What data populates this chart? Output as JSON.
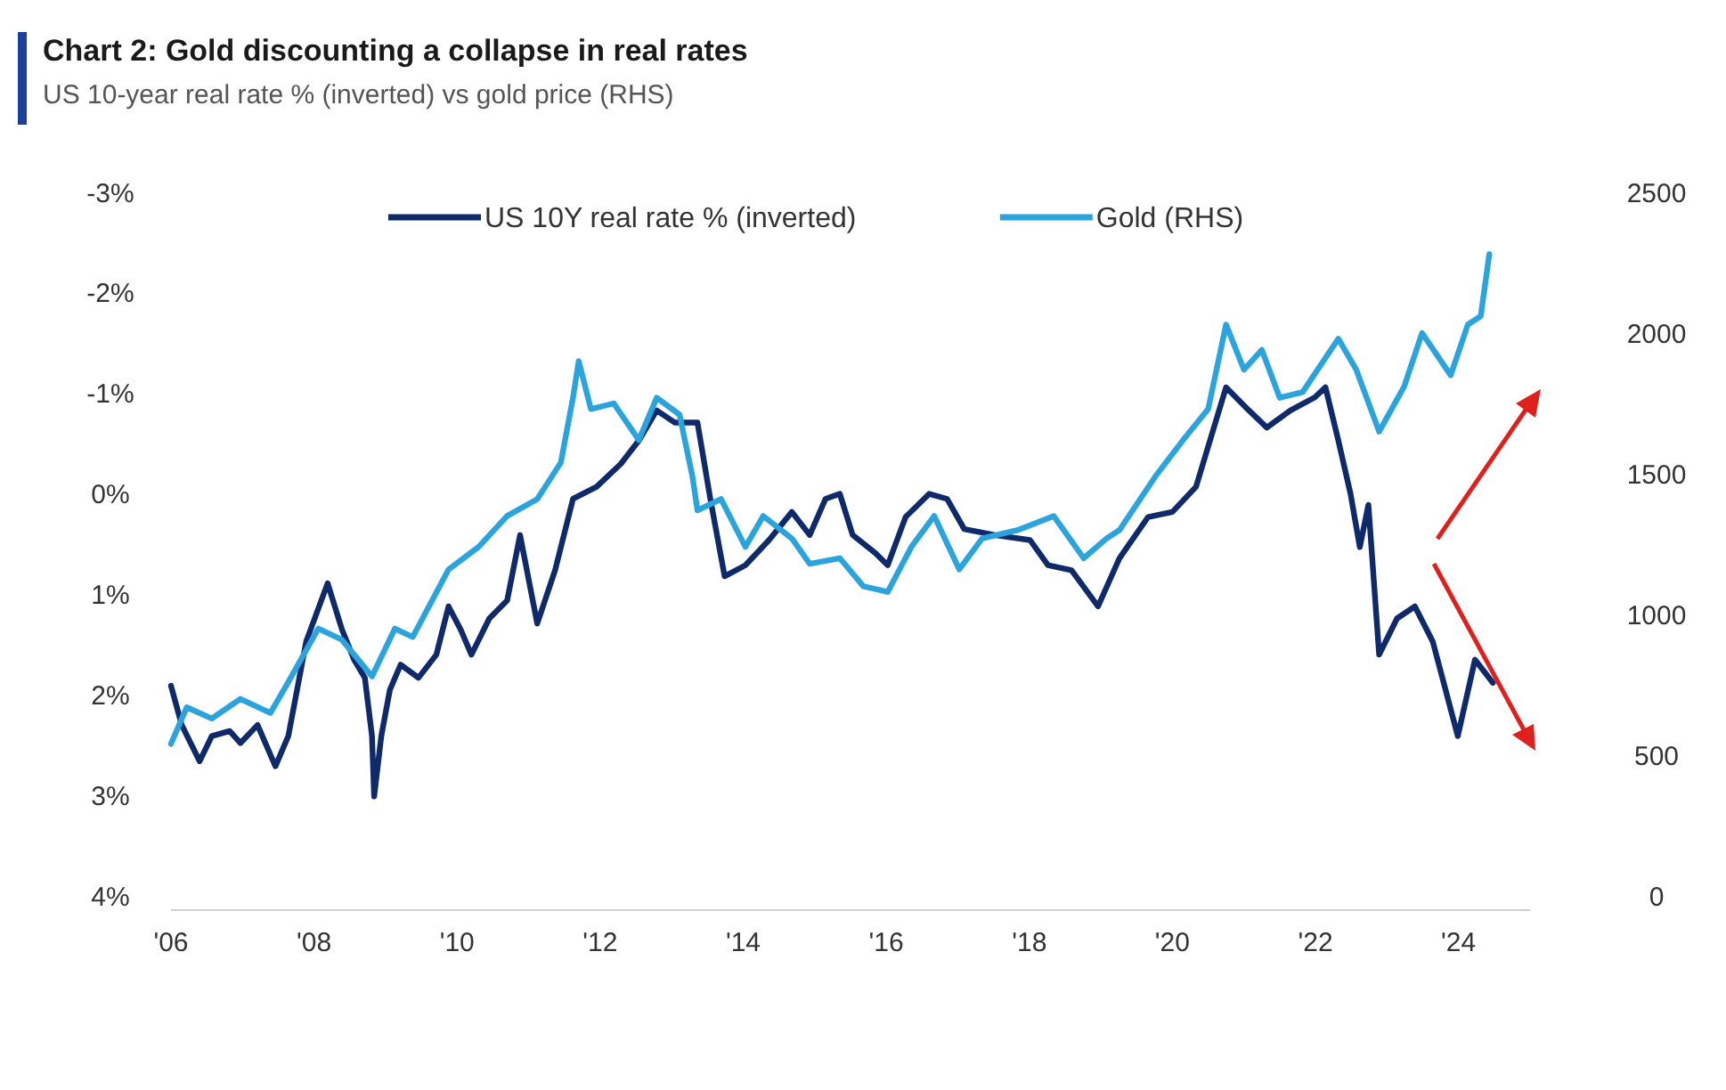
{
  "chart_data": {
    "type": "line",
    "title": "Chart 2: Gold discounting a collapse in real rates",
    "subtitle": "US 10-year real rate % (inverted) vs gold price (RHS)",
    "xlim": [
      2006,
      2025
    ],
    "xticks": [
      {
        "value": 2006,
        "label": "'06"
      },
      {
        "value": 2008,
        "label": "'08"
      },
      {
        "value": 2010,
        "label": "'10"
      },
      {
        "value": 2012,
        "label": "'12"
      },
      {
        "value": 2014,
        "label": "'14"
      },
      {
        "value": 2016,
        "label": "'16"
      },
      {
        "value": 2018,
        "label": "'18"
      },
      {
        "value": 2020,
        "label": "'20"
      },
      {
        "value": 2022,
        "label": "'22"
      },
      {
        "value": 2024,
        "label": "'24"
      }
    ],
    "ylim": [
      4,
      -3
    ],
    "yticks": [
      {
        "value": -3,
        "label": "-3%"
      },
      {
        "value": -2,
        "label": "-2%"
      },
      {
        "value": -1,
        "label": "-1%"
      },
      {
        "value": 0,
        "label": "0%"
      },
      {
        "value": 1,
        "label": "1%"
      },
      {
        "value": 2,
        "label": "2%"
      },
      {
        "value": 3,
        "label": "3%"
      },
      {
        "value": 4,
        "label": "4%"
      }
    ],
    "y2lim": [
      0,
      2500
    ],
    "y2ticks": [
      0,
      500,
      1000,
      1500,
      2000,
      2500
    ],
    "legend": "top",
    "grid": false,
    "marker": "none",
    "line_style": "solid",
    "series": [
      {
        "name": "US 10Y real rate % (inverted)",
        "color": "#0e2a6b",
        "x": [
          2006.0,
          2006.15,
          2006.4,
          2006.57,
          2006.82,
          2006.97,
          2007.21,
          2007.46,
          2007.64,
          2007.89,
          2008.19,
          2008.39,
          2008.56,
          2008.71,
          2008.81,
          2008.84,
          2008.94,
          2009.06,
          2009.21,
          2009.46,
          2009.71,
          2009.88,
          2010.05,
          2010.2,
          2010.45,
          2010.7,
          2010.88,
          2011.12,
          2011.37,
          2011.62,
          2011.95,
          2012.29,
          2012.54,
          2012.79,
          2013.04,
          2013.36,
          2013.54,
          2013.74,
          2014.03,
          2014.36,
          2014.68,
          2014.93,
          2015.15,
          2015.35,
          2015.53,
          2015.85,
          2016.02,
          2016.27,
          2016.6,
          2016.85,
          2017.09,
          2017.52,
          2018.01,
          2018.26,
          2018.59,
          2018.96,
          2019.26,
          2019.66,
          2020.0,
          2020.33,
          2020.58,
          2020.75,
          2021.07,
          2021.32,
          2021.65,
          2021.99,
          2022.14,
          2022.32,
          2022.49,
          2022.62,
          2022.74,
          2022.89,
          2023.14,
          2023.39,
          2023.64,
          2023.99,
          2024.23,
          2024.48
        ],
        "values": [
          1.91,
          2.3,
          2.66,
          2.41,
          2.36,
          2.48,
          2.3,
          2.71,
          2.41,
          1.47,
          0.89,
          1.35,
          1.65,
          1.83,
          2.41,
          3.01,
          2.41,
          1.95,
          1.7,
          1.83,
          1.6,
          1.12,
          1.35,
          1.6,
          1.24,
          1.06,
          0.41,
          1.29,
          0.76,
          0.05,
          -0.07,
          -0.3,
          -0.53,
          -0.83,
          -0.71,
          -0.71,
          0.05,
          0.82,
          0.71,
          0.46,
          0.18,
          0.41,
          0.05,
          0.0,
          0.41,
          0.59,
          0.71,
          0.23,
          0.0,
          0.05,
          0.35,
          0.41,
          0.46,
          0.71,
          0.76,
          1.12,
          0.64,
          0.23,
          0.18,
          -0.07,
          -0.66,
          -1.06,
          -0.83,
          -0.66,
          -0.83,
          -0.96,
          -1.06,
          -0.53,
          0.0,
          0.53,
          0.11,
          1.6,
          1.24,
          1.12,
          1.47,
          2.41,
          1.65,
          1.88
        ]
      },
      {
        "name": "Gold (RHS)",
        "color": "#2ba4dd",
        "axis": "y2",
        "x": [
          2006.0,
          2006.22,
          2006.57,
          2006.97,
          2007.39,
          2007.64,
          2008.06,
          2008.39,
          2008.81,
          2009.13,
          2009.38,
          2009.88,
          2010.3,
          2010.7,
          2011.12,
          2011.45,
          2011.62,
          2011.7,
          2011.87,
          2012.19,
          2012.54,
          2012.79,
          2013.11,
          2013.29,
          2013.36,
          2013.69,
          2014.03,
          2014.28,
          2014.68,
          2014.93,
          2015.35,
          2015.68,
          2016.02,
          2016.35,
          2016.67,
          2017.02,
          2017.34,
          2017.84,
          2018.34,
          2018.76,
          2019.08,
          2019.26,
          2019.76,
          2020.15,
          2020.5,
          2020.75,
          2021.0,
          2021.25,
          2021.5,
          2021.82,
          2022.32,
          2022.57,
          2022.89,
          2023.24,
          2023.49,
          2023.89,
          2024.13,
          2024.31,
          2024.43
        ],
        "values": [
          540,
          670,
          630,
          700,
          650,
          760,
          950,
          910,
          780,
          950,
          920,
          1160,
          1240,
          1350,
          1410,
          1540,
          1770,
          1900,
          1730,
          1750,
          1620,
          1770,
          1710,
          1490,
          1370,
          1410,
          1240,
          1350,
          1270,
          1180,
          1200,
          1100,
          1080,
          1240,
          1350,
          1160,
          1270,
          1300,
          1350,
          1200,
          1270,
          1300,
          1490,
          1620,
          1730,
          2030,
          1870,
          1940,
          1770,
          1790,
          1980,
          1870,
          1650,
          1810,
          2000,
          1850,
          2030,
          2060,
          2280
        ]
      }
    ]
  }
}
